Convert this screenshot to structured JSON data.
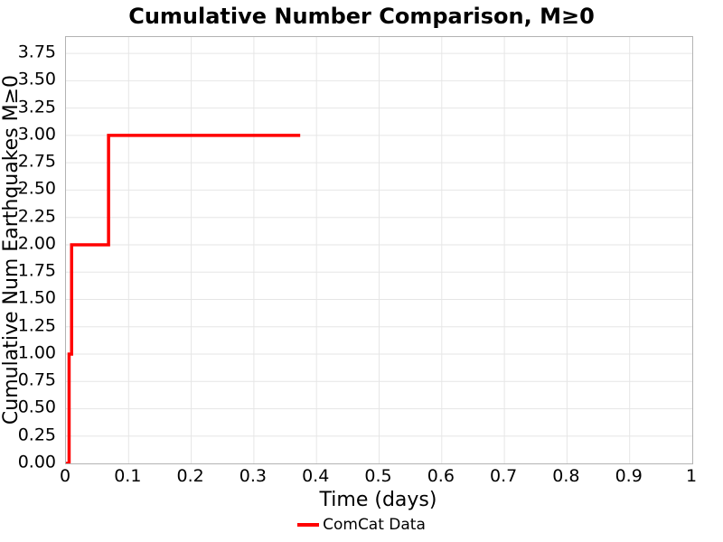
{
  "chart_data": {
    "type": "line",
    "subtype": "step-post",
    "title": "Cumulative Number Comparison, M≥0",
    "xlabel": "Time (days)",
    "ylabel": "Cumulative Num Earthquakes M≥0",
    "xlim": [
      0,
      1
    ],
    "ylim": [
      0,
      3.9
    ],
    "grid": true,
    "x_ticks": {
      "values": [
        0,
        0.1,
        0.2,
        0.3,
        0.4,
        0.5,
        0.6,
        0.7,
        0.8,
        0.9,
        1
      ],
      "labels": [
        "0",
        "0.1",
        "0.2",
        "0.3",
        "0.4",
        "0.5",
        "0.6",
        "0.7",
        "0.8",
        "0.9",
        "1"
      ]
    },
    "y_ticks": {
      "values": [
        0,
        0.25,
        0.5,
        0.75,
        1.0,
        1.25,
        1.5,
        1.75,
        2.0,
        2.25,
        2.5,
        2.75,
        3.0,
        3.25,
        3.5,
        3.75
      ],
      "labels": [
        "0.00",
        "0.25",
        "0.50",
        "0.75",
        "1.00",
        "1.25",
        "1.50",
        "1.75",
        "2.00",
        "2.25",
        "2.50",
        "2.75",
        "3.00",
        "3.25",
        "3.50",
        "3.75"
      ]
    },
    "legend": {
      "position": "bottom-center",
      "entries": [
        {
          "label": "ComCat Data",
          "color": "#ff0000"
        }
      ]
    },
    "series": [
      {
        "name": "ComCat Data",
        "color": "#ff0000",
        "line_width": 3.5,
        "points": [
          [
            0,
            0
          ],
          [
            0.005,
            0
          ],
          [
            0.005,
            1
          ],
          [
            0.009,
            1
          ],
          [
            0.009,
            2
          ],
          [
            0.068,
            2
          ],
          [
            0.068,
            3
          ],
          [
            0.374,
            3
          ]
        ],
        "event_times_days": [
          0.005,
          0.009,
          0.068
        ],
        "last_plotted_time_days": 0.374,
        "cumulative_final": 3
      }
    ],
    "colors": {
      "grid": "#e6e6e6",
      "spine": "#b3b3b3",
      "text": "#000000",
      "background": "#ffffff",
      "line": "#ff0000"
    }
  }
}
